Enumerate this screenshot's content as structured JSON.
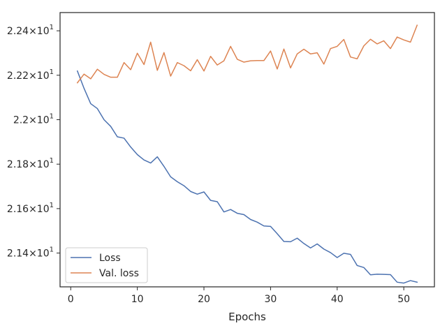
{
  "chart_data": {
    "type": "line",
    "title": "",
    "xlabel": "Epochs",
    "ylabel": "",
    "xlim": [
      -1.6,
      54.6
    ],
    "ylim": [
      21.248,
      22.482
    ],
    "xticks": [
      0,
      10,
      20,
      30,
      40,
      50
    ],
    "xtick_labels": [
      "0",
      "10",
      "20",
      "30",
      "40",
      "50"
    ],
    "yticks": [
      21.4,
      21.6,
      21.8,
      22.0,
      22.2,
      22.4
    ],
    "ytick_labels": [
      {
        "mantissa": "2.14",
        "base": "10",
        "exp": "1"
      },
      {
        "mantissa": "2.16",
        "base": "10",
        "exp": "1"
      },
      {
        "mantissa": "2.18",
        "base": "10",
        "exp": "1"
      },
      {
        "mantissa": "2.2",
        "base": "10",
        "exp": "1"
      },
      {
        "mantissa": "2.22",
        "base": "10",
        "exp": "1"
      },
      {
        "mantissa": "2.24",
        "base": "10",
        "exp": "1"
      }
    ],
    "grid": false,
    "legend_position": "lower-left",
    "x": [
      1,
      2,
      3,
      4,
      5,
      6,
      7,
      8,
      9,
      10,
      11,
      12,
      13,
      14,
      15,
      16,
      17,
      18,
      19,
      20,
      21,
      22,
      23,
      24,
      25,
      26,
      27,
      28,
      29,
      30,
      31,
      32,
      33,
      34,
      35,
      36,
      37,
      38,
      39,
      40,
      41,
      42,
      43,
      44,
      45,
      46,
      47,
      48,
      49,
      50,
      51,
      52
    ],
    "series": [
      {
        "name": "Loss",
        "color": "#4c72b0",
        "values": [
          22.219,
          22.141,
          22.072,
          22.05,
          22.0,
          21.97,
          21.923,
          21.917,
          21.877,
          21.843,
          21.819,
          21.805,
          21.833,
          21.79,
          21.743,
          21.721,
          21.703,
          21.677,
          21.665,
          21.675,
          21.637,
          21.631,
          21.585,
          21.596,
          21.579,
          21.573,
          21.551,
          21.539,
          21.522,
          21.52,
          21.487,
          21.452,
          21.451,
          21.467,
          21.443,
          21.423,
          21.441,
          21.418,
          21.402,
          21.38,
          21.399,
          21.394,
          21.344,
          21.335,
          21.302,
          21.305,
          21.304,
          21.303,
          21.269,
          21.265,
          21.276,
          21.269
        ]
      },
      {
        "name": "Val. loss",
        "color": "#dd8452",
        "values": [
          22.166,
          22.205,
          22.184,
          22.227,
          22.204,
          22.191,
          22.191,
          22.257,
          22.225,
          22.299,
          22.248,
          22.349,
          22.222,
          22.302,
          22.196,
          22.257,
          22.243,
          22.22,
          22.27,
          22.219,
          22.285,
          22.246,
          22.265,
          22.33,
          22.272,
          22.259,
          22.265,
          22.266,
          22.266,
          22.309,
          22.228,
          22.318,
          22.233,
          22.296,
          22.317,
          22.296,
          22.301,
          22.25,
          22.32,
          22.33,
          22.361,
          22.282,
          22.274,
          22.332,
          22.362,
          22.341,
          22.355,
          22.32,
          22.372,
          22.359,
          22.349,
          22.425
        ]
      }
    ]
  }
}
